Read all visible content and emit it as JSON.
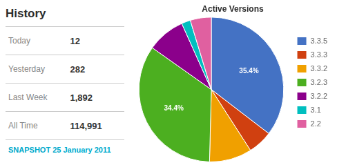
{
  "chart_data": [
    {
      "type": "table",
      "title": "History",
      "categories": [
        "Today",
        "Yesterday",
        "Last Week",
        "All Time"
      ],
      "values": [
        12,
        282,
        1892,
        114991
      ],
      "value_labels": [
        "12",
        "282",
        "1,892",
        "114,991"
      ],
      "annotations": [
        "SNAPSHOT 25 January 2011"
      ]
    },
    {
      "type": "pie",
      "title": "Active Versions",
      "categories": [
        "3.3.5",
        "3.3.3",
        "3.3.2",
        "3.2.3",
        "3.2.2",
        "3.1",
        "2.2"
      ],
      "values": [
        35.4,
        5.5,
        9.5,
        34.4,
        8.5,
        2.0,
        4.7
      ],
      "colors": [
        "#4472C4",
        "#D04010",
        "#F0A000",
        "#4CAF20",
        "#8B008B",
        "#00BFBF",
        "#E060A0"
      ],
      "data_labels": true,
      "value_labels": [
        "35.4%",
        null,
        null,
        "34.4%",
        null,
        null,
        null
      ],
      "legend": "right"
    }
  ]
}
